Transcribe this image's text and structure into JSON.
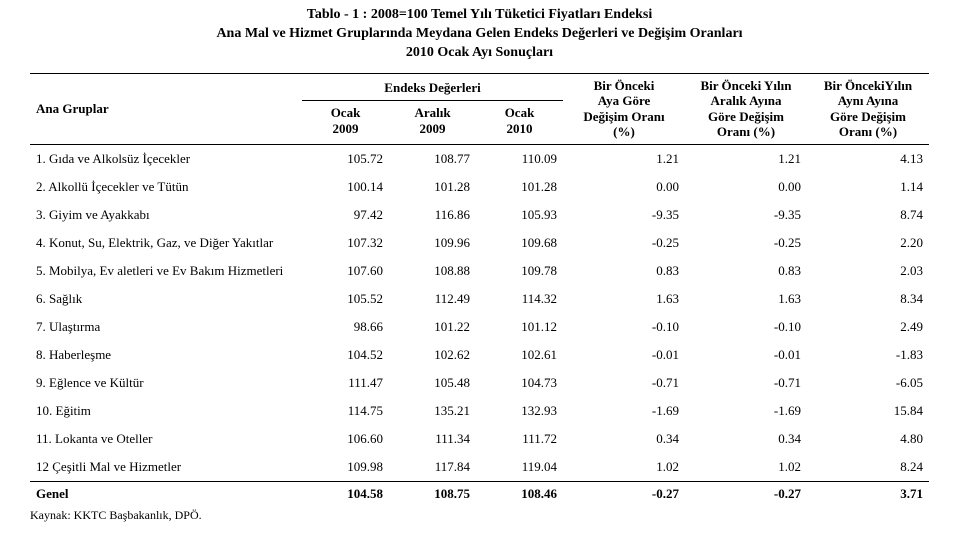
{
  "title": {
    "line1": "Tablo - 1 :    2008=100 Temel Yılı Tüketici Fiyatları Endeksi",
    "line2": "Ana Mal ve Hizmet Gruplarında Meydana Gelen Endeks Değerleri ve Değişim Oranları",
    "line3": "2010 Ocak Ayı Sonuçları"
  },
  "headers": {
    "groups_label": "Ana Gruplar",
    "index_values": "Endeks Değerleri",
    "col1": "Ocak\n2009",
    "col2": "Aralık\n2009",
    "col3": "Ocak\n2010",
    "col4": "Bir Önceki\nAya Göre\nDeğişim Oranı\n(%)",
    "col5": "Bir Önceki Yılın\nAralık Ayına\nGöre Değişim\nOranı (%)",
    "col6": "Bir ÖncekiYılın\nAynı Ayına\nGöre Değişim\nOranı (%)"
  },
  "rows": [
    {
      "label": "1. Gıda ve Alkolsüz İçecekler",
      "v": [
        "105.72",
        "108.77",
        "110.09",
        "1.21",
        "1.21",
        "4.13"
      ]
    },
    {
      "label": "2. Alkollü İçecekler ve Tütün",
      "v": [
        "100.14",
        "101.28",
        "101.28",
        "0.00",
        "0.00",
        "1.14"
      ]
    },
    {
      "label": "3. Giyim ve Ayakkabı",
      "v": [
        "97.42",
        "116.86",
        "105.93",
        "-9.35",
        "-9.35",
        "8.74"
      ]
    },
    {
      "label": "4. Konut, Su, Elektrik, Gaz, ve Diğer Yakıtlar",
      "v": [
        "107.32",
        "109.96",
        "109.68",
        "-0.25",
        "-0.25",
        "2.20"
      ]
    },
    {
      "label": "5. Mobilya, Ev aletleri ve Ev Bakım Hizmetleri",
      "v": [
        "107.60",
        "108.88",
        "109.78",
        "0.83",
        "0.83",
        "2.03"
      ]
    },
    {
      "label": "6. Sağlık",
      "v": [
        "105.52",
        "112.49",
        "114.32",
        "1.63",
        "1.63",
        "8.34"
      ]
    },
    {
      "label": "7. Ulaştırma",
      "v": [
        "98.66",
        "101.22",
        "101.12",
        "-0.10",
        "-0.10",
        "2.49"
      ]
    },
    {
      "label": "8. Haberleşme",
      "v": [
        "104.52",
        "102.62",
        "102.61",
        "-0.01",
        "-0.01",
        "-1.83"
      ]
    },
    {
      "label": "9. Eğlence ve Kültür",
      "v": [
        "111.47",
        "105.48",
        "104.73",
        "-0.71",
        "-0.71",
        "-6.05"
      ]
    },
    {
      "label": "10. Eğitim",
      "v": [
        "114.75",
        "135.21",
        "132.93",
        "-1.69",
        "-1.69",
        "15.84"
      ]
    },
    {
      "label": "11. Lokanta ve Oteller",
      "v": [
        "106.60",
        "111.34",
        "111.72",
        "0.34",
        "0.34",
        "4.80"
      ]
    },
    {
      "label": "12 Çeşitli Mal ve Hizmetler",
      "v": [
        "109.98",
        "117.84",
        "119.04",
        "1.02",
        "1.02",
        "8.24"
      ]
    }
  ],
  "total": {
    "label": "Genel",
    "v": [
      "104.58",
      "108.75",
      "108.46",
      "-0.27",
      "-0.27",
      "3.71"
    ]
  },
  "source": "Kaynak: KKTC Başbakanlık, DPÖ."
}
